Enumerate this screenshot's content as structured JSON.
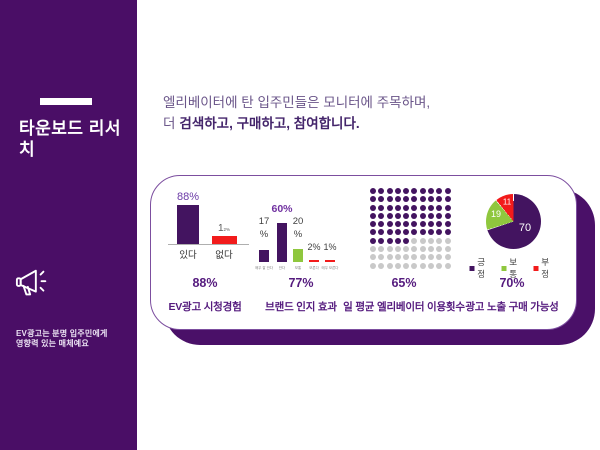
{
  "sidebar": {
    "title": "타운보드 리서치",
    "note": [
      "EV광고는 분명 입주민에게",
      "영향력 있는 매체예요"
    ],
    "background": "#4A0E66",
    "megaphone_icon": "megaphone-icon"
  },
  "headline": {
    "line1": "엘리베이터에 탄 입주민들은 모니터에 주목하며,",
    "line2_prefix": "더",
    "line2_bold": "검색하고, 구매하고, 참여합니다."
  },
  "chart_data": [
    {
      "type": "bar",
      "title": "EV광고 시청경험",
      "summary": "88%",
      "categories": [
        "있다",
        "없다"
      ],
      "values": [
        88,
        12
      ],
      "bar_colors": [
        "#431460",
        "#F21B1B"
      ],
      "value_labels": [
        {
          "text": "88%",
          "color": "#6B3AA6"
        },
        {
          "text_main": "1",
          "text_small": "2%",
          "color": "#595959"
        }
      ]
    },
    {
      "type": "bar",
      "title": "브랜드 인지 효과",
      "summary": "77%",
      "categories": [
        "매우 잘 안다",
        "안다",
        "보통",
        "모른다",
        "매우 모른다"
      ],
      "values": [
        17,
        60,
        20,
        2,
        1
      ],
      "bar_colors": [
        "#431460",
        "#431460",
        "#8FC73E",
        "#F21B1B",
        "#F21B1B"
      ],
      "value_labels": [
        {
          "lines": [
            "17",
            "%"
          ],
          "color": "#3F3F3F"
        },
        {
          "lines": [
            "60%"
          ],
          "color": "#7030A0"
        },
        {
          "lines": [
            "20",
            "%"
          ],
          "color": "#3F3F3F"
        },
        {
          "lines": [
            "2%"
          ],
          "color": "#3F3F3F"
        },
        {
          "lines": [
            "1%"
          ],
          "color": "#3F3F3F"
        }
      ]
    },
    {
      "type": "waffle",
      "title": "일 평균 엘리베이터 이용횟수",
      "summary": "65%",
      "filled": 65,
      "total": 100,
      "columns": 10,
      "filled_color": "#431460",
      "empty_color": "#C9C9C9"
    },
    {
      "type": "pie",
      "title": "광고 노출 구매 가능성",
      "summary": "70%",
      "slices": [
        {
          "label": "긍정",
          "value": 70,
          "color": "#431460"
        },
        {
          "label": "보통",
          "value": 19,
          "color": "#8FC73E"
        },
        {
          "label": "부정",
          "value": 11,
          "color": "#F21B1B"
        }
      ],
      "start_angle_deg": 0,
      "legend_position": "below"
    }
  ]
}
